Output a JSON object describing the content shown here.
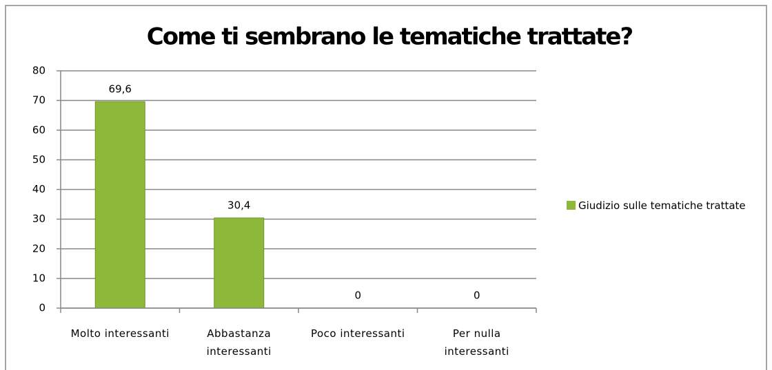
{
  "chart_data": {
    "type": "bar",
    "title": "Come ti sembrano le tematiche trattate?",
    "categories": [
      "Molto interessanti",
      "Abbastanza interessanti",
      "Poco interessanti",
      "Per nulla interessanti"
    ],
    "series": [
      {
        "name": "Giudizio sulle tematiche trattate",
        "color": "#8db83a",
        "values": [
          69.6,
          30.4,
          0,
          0
        ],
        "value_labels": [
          "69,6",
          "30,4",
          "0",
          "0"
        ]
      }
    ],
    "ylim": [
      0,
      80
    ],
    "yticks": [
      0,
      10,
      20,
      30,
      40,
      50,
      60,
      70,
      80
    ],
    "grid": true,
    "legend": "right"
  }
}
